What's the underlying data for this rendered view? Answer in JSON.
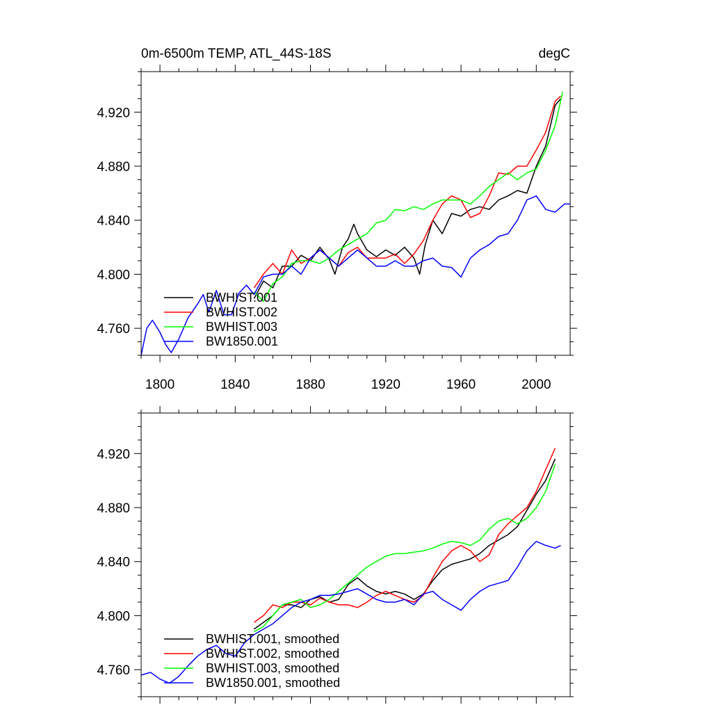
{
  "chart_data": [
    {
      "type": "line",
      "title": "0m-6500m TEMP, ATL_44S-18S",
      "units": "degC",
      "xlim": [
        1790,
        2018
      ],
      "ylim": [
        4.74,
        4.95
      ],
      "xticks": [
        1800,
        1840,
        1880,
        1920,
        1960,
        2000
      ],
      "yticks": [
        4.76,
        4.8,
        4.84,
        4.88,
        4.92
      ],
      "xtick_labels": [
        "1800",
        "1840",
        "1880",
        "1920",
        "1960",
        "2000"
      ],
      "ytick_labels": [
        "4.760",
        "4.800",
        "4.840",
        "4.880",
        "4.920"
      ],
      "legend_position": "bottom-left",
      "series": [
        {
          "name": "BWHIST.001",
          "color": "#000000",
          "x": [
            1850,
            1855,
            1860,
            1865,
            1870,
            1875,
            1880,
            1885,
            1890,
            1893,
            1897,
            1900,
            1903,
            1905,
            1910,
            1915,
            1920,
            1925,
            1930,
            1935,
            1938,
            1941,
            1945,
            1950,
            1955,
            1960,
            1965,
            1970,
            1975,
            1980,
            1985,
            1990,
            1995,
            2000,
            2005,
            2010,
            2013
          ],
          "y": [
            4.782,
            4.795,
            4.79,
            4.806,
            4.806,
            4.814,
            4.81,
            4.82,
            4.811,
            4.8,
            4.82,
            4.826,
            4.837,
            4.83,
            4.818,
            4.813,
            4.818,
            4.814,
            4.82,
            4.812,
            4.8,
            4.822,
            4.84,
            4.83,
            4.845,
            4.843,
            4.848,
            4.85,
            4.848,
            4.855,
            4.858,
            4.862,
            4.86,
            4.88,
            4.895,
            4.925,
            4.93
          ]
        },
        {
          "name": "BWHIST.002",
          "color": "#ff0000",
          "x": [
            1850,
            1855,
            1860,
            1865,
            1870,
            1875,
            1880,
            1885,
            1890,
            1895,
            1900,
            1905,
            1910,
            1915,
            1920,
            1925,
            1930,
            1935,
            1940,
            1945,
            1950,
            1955,
            1960,
            1965,
            1970,
            1975,
            1980,
            1985,
            1990,
            1995,
            2000,
            2005,
            2010,
            2013
          ],
          "y": [
            4.79,
            4.8,
            4.808,
            4.8,
            4.818,
            4.808,
            4.812,
            4.818,
            4.812,
            4.806,
            4.816,
            4.82,
            4.812,
            4.812,
            4.812,
            4.815,
            4.808,
            4.815,
            4.825,
            4.84,
            4.852,
            4.858,
            4.855,
            4.842,
            4.845,
            4.858,
            4.875,
            4.874,
            4.88,
            4.88,
            4.892,
            4.905,
            4.928,
            4.932
          ]
        },
        {
          "name": "BWHIST.003",
          "color": "#00ff00",
          "x": [
            1850,
            1855,
            1860,
            1865,
            1870,
            1875,
            1880,
            1885,
            1890,
            1895,
            1900,
            1905,
            1910,
            1915,
            1920,
            1925,
            1930,
            1935,
            1940,
            1945,
            1950,
            1955,
            1960,
            1965,
            1970,
            1975,
            1980,
            1985,
            1990,
            1995,
            2000,
            2005,
            2010,
            2014
          ],
          "y": [
            4.787,
            4.78,
            4.793,
            4.798,
            4.808,
            4.81,
            4.81,
            4.808,
            4.812,
            4.818,
            4.822,
            4.826,
            4.83,
            4.838,
            4.84,
            4.848,
            4.847,
            4.85,
            4.848,
            4.852,
            4.855,
            4.855,
            4.855,
            4.852,
            4.858,
            4.865,
            4.87,
            4.875,
            4.87,
            4.875,
            4.878,
            4.892,
            4.91,
            4.935
          ]
        },
        {
          "name": "BW1850.001",
          "color": "#0000ff",
          "x": [
            1790,
            1793,
            1796,
            1800,
            1803,
            1806,
            1810,
            1815,
            1820,
            1823,
            1826,
            1830,
            1834,
            1838,
            1842,
            1846,
            1850,
            1855,
            1860,
            1865,
            1870,
            1875,
            1880,
            1885,
            1890,
            1895,
            1900,
            1905,
            1910,
            1915,
            1920,
            1925,
            1930,
            1935,
            1940,
            1945,
            1950,
            1955,
            1960,
            1965,
            1970,
            1975,
            1980,
            1985,
            1990,
            1995,
            2000,
            2005,
            2010,
            2015,
            2018
          ],
          "y": [
            4.74,
            4.76,
            4.766,
            4.757,
            4.748,
            4.742,
            4.752,
            4.768,
            4.778,
            4.785,
            4.772,
            4.788,
            4.77,
            4.77,
            4.786,
            4.792,
            4.785,
            4.798,
            4.8,
            4.8,
            4.806,
            4.8,
            4.812,
            4.818,
            4.812,
            4.806,
            4.812,
            4.818,
            4.812,
            4.806,
            4.806,
            4.81,
            4.806,
            4.806,
            4.81,
            4.812,
            4.806,
            4.805,
            4.798,
            4.812,
            4.818,
            4.822,
            4.828,
            4.83,
            4.84,
            4.855,
            4.858,
            4.848,
            4.846,
            4.852,
            4.852
          ]
        }
      ]
    },
    {
      "type": "line",
      "title": "",
      "xlim": [
        1790,
        2018
      ],
      "ylim": [
        4.74,
        4.95
      ],
      "yticks": [
        4.76,
        4.8,
        4.84,
        4.88,
        4.92
      ],
      "ytick_labels": [
        "4.760",
        "4.800",
        "4.840",
        "4.880",
        "4.920"
      ],
      "xticks": [
        1800,
        1840,
        1880,
        1920,
        1960,
        2000
      ],
      "legend_position": "bottom-left",
      "series": [
        {
          "name": "BWHIST.001, smoothed",
          "color": "#000000",
          "x": [
            1850,
            1855,
            1860,
            1865,
            1870,
            1875,
            1880,
            1885,
            1890,
            1895,
            1900,
            1905,
            1910,
            1915,
            1920,
            1925,
            1930,
            1935,
            1940,
            1945,
            1950,
            1955,
            1960,
            1965,
            1970,
            1975,
            1980,
            1985,
            1990,
            1995,
            2000,
            2005,
            2010
          ],
          "y": [
            4.79,
            4.795,
            4.8,
            4.808,
            4.808,
            4.806,
            4.812,
            4.814,
            4.81,
            4.812,
            4.823,
            4.828,
            4.822,
            4.818,
            4.816,
            4.818,
            4.816,
            4.812,
            4.816,
            4.826,
            4.834,
            4.838,
            4.84,
            4.842,
            4.846,
            4.852,
            4.856,
            4.86,
            4.866,
            4.878,
            4.89,
            4.9,
            4.916
          ]
        },
        {
          "name": "BWHIST.002, smoothed",
          "color": "#ff0000",
          "x": [
            1850,
            1855,
            1860,
            1865,
            1870,
            1875,
            1880,
            1885,
            1890,
            1895,
            1900,
            1905,
            1910,
            1915,
            1920,
            1925,
            1930,
            1935,
            1940,
            1945,
            1950,
            1955,
            1960,
            1965,
            1970,
            1975,
            1980,
            1985,
            1990,
            1995,
            2000,
            2005,
            2010
          ],
          "y": [
            4.795,
            4.8,
            4.808,
            4.806,
            4.81,
            4.81,
            4.808,
            4.813,
            4.81,
            4.808,
            4.808,
            4.806,
            4.81,
            4.815,
            4.818,
            4.815,
            4.812,
            4.81,
            4.815,
            4.828,
            4.84,
            4.848,
            4.852,
            4.848,
            4.84,
            4.845,
            4.86,
            4.868,
            4.874,
            4.88,
            4.892,
            4.908,
            4.924
          ]
        },
        {
          "name": "BWHIST.003, smoothed",
          "color": "#00ff00",
          "x": [
            1850,
            1855,
            1860,
            1865,
            1870,
            1875,
            1880,
            1885,
            1890,
            1895,
            1900,
            1905,
            1910,
            1915,
            1920,
            1925,
            1930,
            1935,
            1940,
            1945,
            1950,
            1955,
            1960,
            1965,
            1970,
            1975,
            1980,
            1985,
            1990,
            1995,
            2000,
            2005,
            2010
          ],
          "y": [
            4.788,
            4.792,
            4.8,
            4.808,
            4.81,
            4.812,
            4.806,
            4.808,
            4.812,
            4.818,
            4.824,
            4.83,
            4.836,
            4.84,
            4.844,
            4.846,
            4.846,
            4.847,
            4.848,
            4.85,
            4.853,
            4.855,
            4.854,
            4.852,
            4.856,
            4.864,
            4.87,
            4.872,
            4.868,
            4.872,
            4.88,
            4.892,
            4.912
          ]
        },
        {
          "name": "BW1850.001, smoothed",
          "color": "#0000ff",
          "x": [
            1790,
            1795,
            1800,
            1805,
            1810,
            1815,
            1820,
            1825,
            1830,
            1835,
            1840,
            1845,
            1850,
            1855,
            1860,
            1865,
            1870,
            1875,
            1880,
            1885,
            1890,
            1895,
            1900,
            1905,
            1910,
            1915,
            1920,
            1925,
            1930,
            1935,
            1940,
            1945,
            1950,
            1955,
            1960,
            1965,
            1970,
            1975,
            1980,
            1985,
            1990,
            1995,
            2000,
            2005,
            2010,
            2013
          ],
          "y": [
            4.756,
            4.758,
            4.753,
            4.75,
            4.755,
            4.763,
            4.77,
            4.775,
            4.778,
            4.772,
            4.77,
            4.78,
            4.786,
            4.79,
            4.794,
            4.8,
            4.806,
            4.81,
            4.812,
            4.815,
            4.815,
            4.816,
            4.818,
            4.82,
            4.816,
            4.812,
            4.81,
            4.81,
            4.812,
            4.808,
            4.816,
            4.818,
            4.812,
            4.808,
            4.804,
            4.812,
            4.818,
            4.822,
            4.824,
            4.826,
            4.836,
            4.848,
            4.855,
            4.852,
            4.85,
            4.852
          ]
        }
      ]
    }
  ]
}
